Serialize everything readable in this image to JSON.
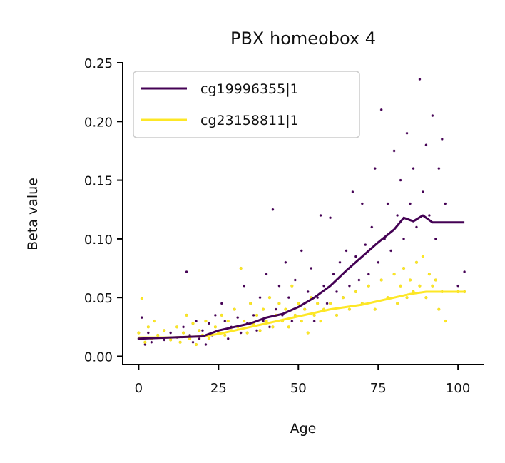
{
  "chart_data": {
    "type": "scatter",
    "title": "PBX homeobox 4",
    "xlabel": "Age",
    "ylabel": "Beta value",
    "xlim": [
      -5,
      108
    ],
    "ylim": [
      -0.007,
      0.25
    ],
    "xticks": [
      0,
      25,
      50,
      75,
      100
    ],
    "yticks": [
      0.0,
      0.05,
      0.1,
      0.15,
      0.2,
      0.25
    ],
    "xtick_labels": [
      "0",
      "25",
      "50",
      "75",
      "100"
    ],
    "ytick_labels": [
      "0.00",
      "0.05",
      "0.10",
      "0.15",
      "0.20",
      "0.25"
    ],
    "legend_position": "top-left",
    "grid": false,
    "series": [
      {
        "name": "cg19996355|1",
        "color": "#440154",
        "trend": [
          [
            0,
            0.015
          ],
          [
            10,
            0.016
          ],
          [
            20,
            0.017
          ],
          [
            25,
            0.022
          ],
          [
            30,
            0.025
          ],
          [
            35,
            0.028
          ],
          [
            40,
            0.033
          ],
          [
            45,
            0.036
          ],
          [
            50,
            0.042
          ],
          [
            55,
            0.05
          ],
          [
            60,
            0.06
          ],
          [
            65,
            0.073
          ],
          [
            70,
            0.085
          ],
          [
            75,
            0.097
          ],
          [
            80,
            0.108
          ],
          [
            83,
            0.118
          ],
          [
            86,
            0.115
          ],
          [
            89,
            0.12
          ],
          [
            92,
            0.114
          ],
          [
            102,
            0.114
          ]
        ],
        "points": [
          [
            0,
            0.015
          ],
          [
            1,
            0.033
          ],
          [
            2,
            0.01
          ],
          [
            3,
            0.02
          ],
          [
            4,
            0.012
          ],
          [
            6,
            0.018
          ],
          [
            8,
            0.014
          ],
          [
            10,
            0.02
          ],
          [
            12,
            0.016
          ],
          [
            14,
            0.025
          ],
          [
            15,
            0.072
          ],
          [
            16,
            0.018
          ],
          [
            17,
            0.012
          ],
          [
            18,
            0.03
          ],
          [
            19,
            0.015
          ],
          [
            20,
            0.022
          ],
          [
            21,
            0.01
          ],
          [
            22,
            0.028
          ],
          [
            23,
            0.018
          ],
          [
            24,
            0.035
          ],
          [
            25,
            0.02
          ],
          [
            26,
            0.045
          ],
          [
            27,
            0.03
          ],
          [
            28,
            0.015
          ],
          [
            29,
            0.025
          ],
          [
            30,
            0.04
          ],
          [
            31,
            0.033
          ],
          [
            32,
            0.02
          ],
          [
            33,
            0.06
          ],
          [
            34,
            0.028
          ],
          [
            35,
            0.045
          ],
          [
            36,
            0.035
          ],
          [
            37,
            0.022
          ],
          [
            38,
            0.05
          ],
          [
            39,
            0.03
          ],
          [
            40,
            0.07
          ],
          [
            41,
            0.025
          ],
          [
            42,
            0.125
          ],
          [
            43,
            0.04
          ],
          [
            44,
            0.06
          ],
          [
            45,
            0.035
          ],
          [
            46,
            0.08
          ],
          [
            47,
            0.05
          ],
          [
            48,
            0.03
          ],
          [
            49,
            0.065
          ],
          [
            50,
            0.045
          ],
          [
            51,
            0.09
          ],
          [
            52,
            0.04
          ],
          [
            53,
            0.055
          ],
          [
            54,
            0.075
          ],
          [
            55,
            0.03
          ],
          [
            56,
            0.05
          ],
          [
            57,
            0.12
          ],
          [
            58,
            0.06
          ],
          [
            59,
            0.045
          ],
          [
            60,
            0.118
          ],
          [
            61,
            0.07
          ],
          [
            62,
            0.055
          ],
          [
            63,
            0.08
          ],
          [
            64,
            0.05
          ],
          [
            65,
            0.09
          ],
          [
            66,
            0.06
          ],
          [
            67,
            0.14
          ],
          [
            68,
            0.085
          ],
          [
            69,
            0.065
          ],
          [
            70,
            0.13
          ],
          [
            71,
            0.095
          ],
          [
            72,
            0.07
          ],
          [
            73,
            0.11
          ],
          [
            74,
            0.16
          ],
          [
            75,
            0.08
          ],
          [
            76,
            0.21
          ],
          [
            77,
            0.1
          ],
          [
            78,
            0.13
          ],
          [
            79,
            0.09
          ],
          [
            80,
            0.175
          ],
          [
            81,
            0.12
          ],
          [
            82,
            0.15
          ],
          [
            83,
            0.1
          ],
          [
            84,
            0.19
          ],
          [
            85,
            0.13
          ],
          [
            86,
            0.16
          ],
          [
            87,
            0.11
          ],
          [
            88,
            0.236
          ],
          [
            89,
            0.14
          ],
          [
            90,
            0.18
          ],
          [
            91,
            0.12
          ],
          [
            92,
            0.205
          ],
          [
            93,
            0.1
          ],
          [
            94,
            0.16
          ],
          [
            95,
            0.185
          ],
          [
            96,
            0.13
          ],
          [
            100,
            0.06
          ],
          [
            102,
            0.072
          ]
        ]
      },
      {
        "name": "cg23158811|1",
        "color": "#fde725",
        "trend": [
          [
            0,
            0.016
          ],
          [
            10,
            0.016
          ],
          [
            20,
            0.017
          ],
          [
            25,
            0.019
          ],
          [
            30,
            0.022
          ],
          [
            35,
            0.025
          ],
          [
            40,
            0.028
          ],
          [
            45,
            0.031
          ],
          [
            50,
            0.034
          ],
          [
            55,
            0.037
          ],
          [
            60,
            0.04
          ],
          [
            65,
            0.042
          ],
          [
            70,
            0.044
          ],
          [
            75,
            0.047
          ],
          [
            80,
            0.05
          ],
          [
            85,
            0.053
          ],
          [
            90,
            0.055
          ],
          [
            95,
            0.055
          ],
          [
            102,
            0.055
          ]
        ],
        "points": [
          [
            0,
            0.02
          ],
          [
            1,
            0.049
          ],
          [
            2,
            0.012
          ],
          [
            3,
            0.025
          ],
          [
            4,
            0.015
          ],
          [
            5,
            0.03
          ],
          [
            6,
            0.018
          ],
          [
            8,
            0.022
          ],
          [
            10,
            0.014
          ],
          [
            12,
            0.025
          ],
          [
            13,
            0.012
          ],
          [
            14,
            0.02
          ],
          [
            15,
            0.035
          ],
          [
            16,
            0.015
          ],
          [
            17,
            0.028
          ],
          [
            18,
            0.01
          ],
          [
            19,
            0.022
          ],
          [
            20,
            0.018
          ],
          [
            21,
            0.03
          ],
          [
            22,
            0.015
          ],
          [
            24,
            0.025
          ],
          [
            25,
            0.02
          ],
          [
            26,
            0.035
          ],
          [
            27,
            0.018
          ],
          [
            28,
            0.03
          ],
          [
            29,
            0.022
          ],
          [
            30,
            0.04
          ],
          [
            31,
            0.025
          ],
          [
            32,
            0.075
          ],
          [
            33,
            0.03
          ],
          [
            34,
            0.02
          ],
          [
            35,
            0.045
          ],
          [
            36,
            0.028
          ],
          [
            37,
            0.035
          ],
          [
            38,
            0.022
          ],
          [
            39,
            0.04
          ],
          [
            40,
            0.03
          ],
          [
            41,
            0.05
          ],
          [
            42,
            0.025
          ],
          [
            43,
            0.035
          ],
          [
            44,
            0.045
          ],
          [
            45,
            0.03
          ],
          [
            46,
            0.04
          ],
          [
            47,
            0.025
          ],
          [
            48,
            0.06
          ],
          [
            49,
            0.035
          ],
          [
            50,
            0.045
          ],
          [
            51,
            0.03
          ],
          [
            52,
            0.04
          ],
          [
            53,
            0.02
          ],
          [
            54,
            0.05
          ],
          [
            55,
            0.035
          ],
          [
            56,
            0.045
          ],
          [
            57,
            0.03
          ],
          [
            58,
            0.04
          ],
          [
            60,
            0.045
          ],
          [
            62,
            0.035
          ],
          [
            64,
            0.05
          ],
          [
            66,
            0.04
          ],
          [
            68,
            0.055
          ],
          [
            70,
            0.045
          ],
          [
            72,
            0.06
          ],
          [
            74,
            0.04
          ],
          [
            76,
            0.065
          ],
          [
            78,
            0.05
          ],
          [
            80,
            0.07
          ],
          [
            81,
            0.045
          ],
          [
            82,
            0.06
          ],
          [
            83,
            0.075
          ],
          [
            84,
            0.05
          ],
          [
            85,
            0.065
          ],
          [
            86,
            0.055
          ],
          [
            87,
            0.08
          ],
          [
            88,
            0.06
          ],
          [
            89,
            0.085
          ],
          [
            90,
            0.05
          ],
          [
            91,
            0.07
          ],
          [
            92,
            0.06
          ],
          [
            93,
            0.065
          ],
          [
            94,
            0.04
          ],
          [
            95,
            0.055
          ],
          [
            96,
            0.03
          ],
          [
            100,
            0.055
          ],
          [
            102,
            0.055
          ]
        ]
      }
    ]
  }
}
